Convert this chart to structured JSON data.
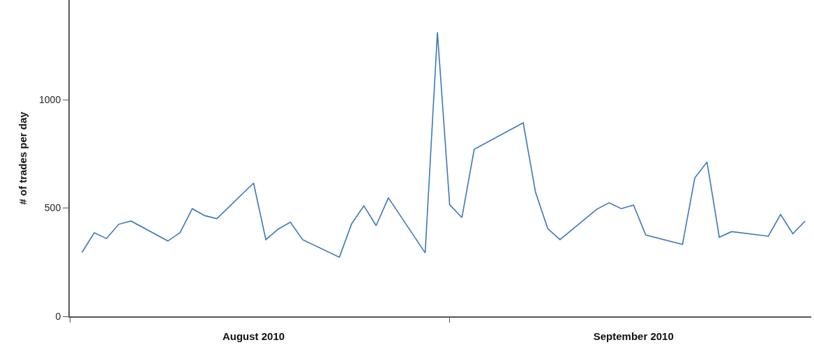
{
  "chart_data": {
    "type": "line",
    "ylabel": "# of trades per day",
    "x": [
      "2010-08-02",
      "2010-08-03",
      "2010-08-04",
      "2010-08-05",
      "2010-08-06",
      "2010-08-09",
      "2010-08-10",
      "2010-08-11",
      "2010-08-12",
      "2010-08-13",
      "2010-08-16",
      "2010-08-17",
      "2010-08-18",
      "2010-08-19",
      "2010-08-20",
      "2010-08-23",
      "2010-08-24",
      "2010-08-25",
      "2010-08-26",
      "2010-08-27",
      "2010-08-30",
      "2010-08-31",
      "2010-09-01",
      "2010-09-02",
      "2010-09-03",
      "2010-09-07",
      "2010-09-08",
      "2010-09-09",
      "2010-09-10",
      "2010-09-13",
      "2010-09-14",
      "2010-09-15",
      "2010-09-16",
      "2010-09-17",
      "2010-09-20",
      "2010-09-21",
      "2010-09-22",
      "2010-09-23",
      "2010-09-24",
      "2010-09-27",
      "2010-09-28",
      "2010-09-29",
      "2010-09-30"
    ],
    "series": [
      {
        "color": "#3a78b9",
        "values": [
          295,
          386,
          359,
          425,
          440,
          348,
          386,
          497,
          465,
          451,
          615,
          354,
          402,
          435,
          354,
          273,
          427,
          510,
          419,
          547,
          293,
          1311,
          515,
          456,
          771,
          893,
          574,
          405,
          354,
          494,
          524,
          497,
          514,
          375,
          332,
          639,
          712,
          365,
          391,
          370,
          470,
          381,
          440
        ]
      }
    ],
    "xlim": [
      "2010-08-01",
      "2010-09-30T12:00"
    ],
    "xticks": [
      {
        "value": "2010-08-01",
        "label": null
      },
      {
        "value": "2010-09-01",
        "label": null
      },
      {
        "value": "2010-08-16",
        "label": "August 2010"
      },
      {
        "value": "2010-09-16",
        "label": "September 2010"
      }
    ],
    "ylim": [
      0,
      1460
    ],
    "yticks": [
      0,
      500,
      1000
    ],
    "marker": "none",
    "line_style": "solid"
  }
}
